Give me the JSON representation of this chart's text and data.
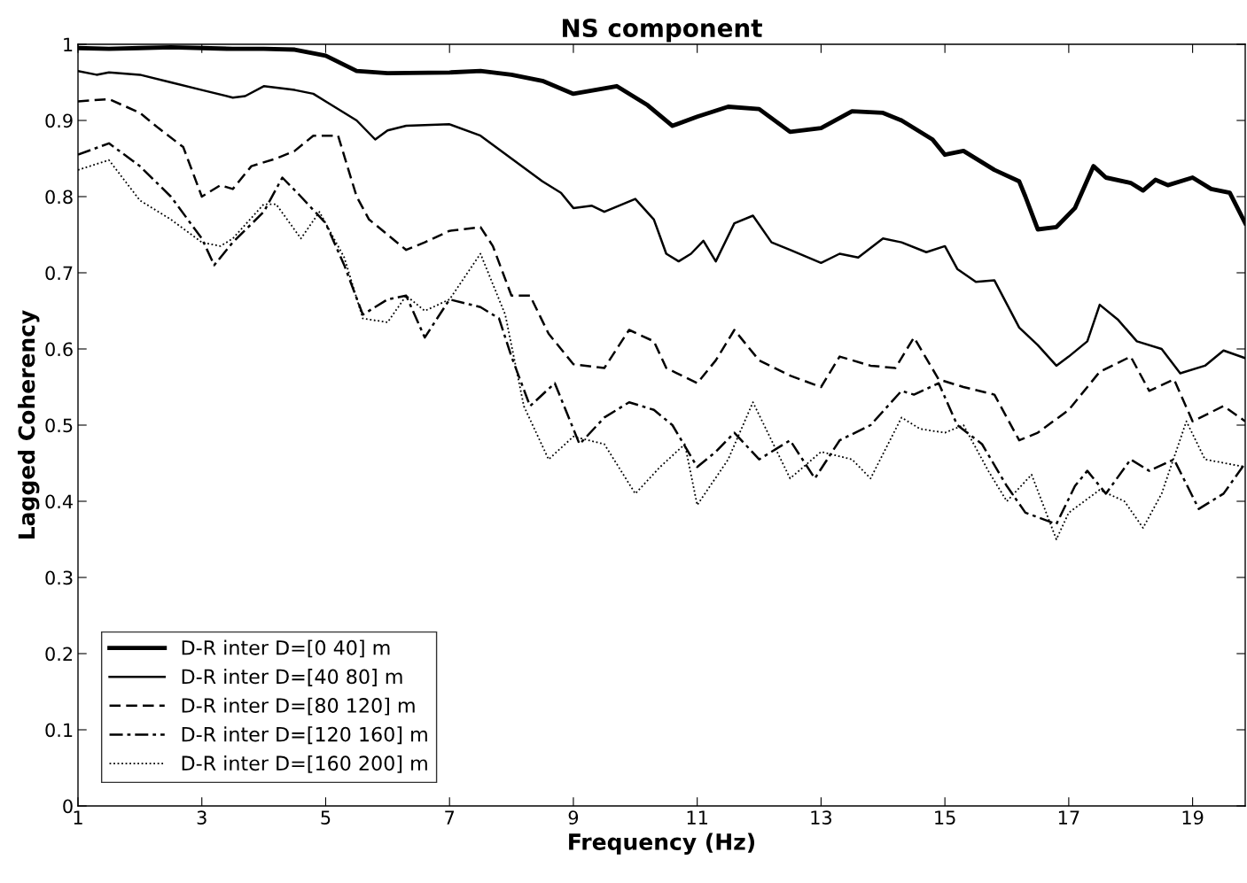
{
  "chart_data": {
    "type": "line",
    "title": "NS component",
    "xlabel": "Frequency (Hz)",
    "ylabel": "Lagged Coherency",
    "xlim": [
      1,
      19.85
    ],
    "xticks": [
      1,
      3,
      5,
      7,
      9,
      11,
      13,
      15,
      17,
      19
    ],
    "ylim": [
      0,
      1
    ],
    "yticks": [
      0,
      0.1,
      0.2,
      0.3,
      0.4,
      0.5,
      0.6,
      0.7,
      0.8,
      0.9,
      1
    ],
    "grid": false,
    "legend": "bottom left",
    "marker": "none",
    "series": [
      {
        "name": "D-R inter D=[0 40] m",
        "color": "#000000",
        "line_style": "solid",
        "x": [
          1,
          1.5,
          2,
          2.5,
          3,
          3.5,
          4,
          4.5,
          5,
          5.5,
          6,
          7,
          7.5,
          8,
          8.5,
          9,
          9.7,
          10.2,
          10.6,
          11,
          11.5,
          12,
          12.5,
          13,
          13.5,
          14,
          14.3,
          14.8,
          15,
          15.3,
          15.8,
          16.2,
          16.3,
          16.5,
          16.8,
          17.1,
          17.4,
          17.6,
          18,
          18.2,
          18.4,
          18.6,
          19,
          19.3,
          19.6,
          19.85
        ],
        "values": [
          0.995,
          0.994,
          0.995,
          0.996,
          0.995,
          0.994,
          0.994,
          0.993,
          0.985,
          0.965,
          0.962,
          0.963,
          0.965,
          0.96,
          0.952,
          0.935,
          0.945,
          0.92,
          0.893,
          0.905,
          0.918,
          0.915,
          0.885,
          0.89,
          0.912,
          0.91,
          0.9,
          0.875,
          0.855,
          0.86,
          0.835,
          0.82,
          0.8,
          0.757,
          0.76,
          0.785,
          0.84,
          0.825,
          0.818,
          0.808,
          0.822,
          0.815,
          0.825,
          0.81,
          0.805,
          0.765
        ]
      },
      {
        "name": "D-R inter D=[40 80] m",
        "color": "#000000",
        "line_style": "solid",
        "x": [
          1,
          1.3,
          1.5,
          2,
          2.5,
          3,
          3.5,
          3.7,
          4,
          4.5,
          4.8,
          5,
          5.5,
          5.8,
          6,
          6.3,
          7,
          7.5,
          8,
          8.5,
          8.8,
          9,
          9.3,
          9.5,
          10,
          10.3,
          10.5,
          10.7,
          10.9,
          11.1,
          11.3,
          11.6,
          11.9,
          12.2,
          12.5,
          13,
          13.3,
          13.6,
          14,
          14.3,
          14.7,
          15,
          15.2,
          15.5,
          15.8,
          16.2,
          16.5,
          16.8,
          17,
          17.3,
          17.5,
          17.8,
          18.1,
          18.5,
          18.8,
          19.2,
          19.5,
          19.85
        ],
        "values": [
          0.965,
          0.96,
          0.963,
          0.96,
          0.95,
          0.94,
          0.93,
          0.932,
          0.945,
          0.94,
          0.935,
          0.925,
          0.9,
          0.875,
          0.887,
          0.893,
          0.895,
          0.88,
          0.85,
          0.82,
          0.805,
          0.785,
          0.788,
          0.78,
          0.797,
          0.77,
          0.725,
          0.715,
          0.725,
          0.742,
          0.715,
          0.765,
          0.775,
          0.74,
          0.73,
          0.713,
          0.725,
          0.72,
          0.745,
          0.74,
          0.727,
          0.735,
          0.705,
          0.688,
          0.69,
          0.628,
          0.605,
          0.578,
          0.59,
          0.61,
          0.658,
          0.638,
          0.61,
          0.6,
          0.568,
          0.578,
          0.598,
          0.588
        ]
      },
      {
        "name": "D-R inter D=[80 120] m",
        "color": "#000000",
        "line_style": "dashed",
        "x": [
          1,
          1.5,
          2,
          2.3,
          2.7,
          3,
          3.3,
          3.5,
          3.8,
          4.2,
          4.5,
          4.8,
          5.2,
          5.5,
          5.7,
          6,
          6.3,
          6.6,
          7,
          7.5,
          7.7,
          8,
          8.3,
          8.6,
          9,
          9.5,
          9.9,
          10.3,
          10.5,
          11,
          11.3,
          11.6,
          12,
          12.5,
          13,
          13.3,
          13.8,
          14.2,
          14.5,
          14.9,
          15.3,
          15.8,
          16.2,
          16.5,
          17,
          17.5,
          18,
          18.3,
          18.7,
          19,
          19.5,
          19.85
        ],
        "values": [
          0.925,
          0.928,
          0.91,
          0.89,
          0.865,
          0.8,
          0.815,
          0.81,
          0.84,
          0.85,
          0.86,
          0.88,
          0.88,
          0.8,
          0.77,
          0.75,
          0.73,
          0.74,
          0.755,
          0.76,
          0.735,
          0.67,
          0.67,
          0.62,
          0.58,
          0.575,
          0.625,
          0.61,
          0.575,
          0.555,
          0.585,
          0.625,
          0.585,
          0.565,
          0.55,
          0.59,
          0.578,
          0.575,
          0.615,
          0.56,
          0.55,
          0.54,
          0.48,
          0.49,
          0.52,
          0.57,
          0.59,
          0.545,
          0.56,
          0.505,
          0.525,
          0.505
        ]
      },
      {
        "name": "D-R inter D=[120 160] m",
        "color": "#000000",
        "line_style": "dashdot",
        "x": [
          1,
          1.5,
          2,
          2.5,
          3,
          3.2,
          3.5,
          4,
          4.3,
          4.6,
          5,
          5.3,
          5.6,
          6,
          6.3,
          6.6,
          7,
          7.5,
          7.8,
          8,
          8.3,
          8.7,
          9.1,
          9.5,
          9.9,
          10.3,
          10.6,
          11,
          11.3,
          11.6,
          12,
          12.5,
          12.9,
          13.3,
          13.8,
          14.3,
          14.5,
          14.9,
          15.2,
          15.6,
          16,
          16.3,
          16.8,
          17.1,
          17.3,
          17.6,
          18,
          18.3,
          18.7,
          19.1,
          19.5,
          19.85
        ],
        "values": [
          0.855,
          0.87,
          0.84,
          0.8,
          0.745,
          0.71,
          0.74,
          0.78,
          0.825,
          0.8,
          0.765,
          0.71,
          0.645,
          0.665,
          0.67,
          0.615,
          0.665,
          0.655,
          0.64,
          0.59,
          0.525,
          0.555,
          0.475,
          0.51,
          0.53,
          0.52,
          0.5,
          0.445,
          0.465,
          0.49,
          0.455,
          0.48,
          0.43,
          0.48,
          0.5,
          0.545,
          0.54,
          0.555,
          0.5,
          0.475,
          0.42,
          0.385,
          0.37,
          0.42,
          0.44,
          0.41,
          0.455,
          0.44,
          0.455,
          0.39,
          0.41,
          0.45
        ]
      },
      {
        "name": "D-R inter D=[160 200] m",
        "color": "#000000",
        "line_style": "dotted",
        "x": [
          1,
          1.5,
          2,
          2.5,
          3,
          3.3,
          3.5,
          4,
          4.2,
          4.6,
          4.9,
          5.3,
          5.6,
          6,
          6.3,
          6.6,
          7,
          7.5,
          7.9,
          8.2,
          8.6,
          9,
          9.5,
          10,
          10.4,
          10.8,
          11,
          11.5,
          11.9,
          12.5,
          13,
          13.5,
          13.8,
          14.3,
          14.6,
          15,
          15.3,
          15.7,
          16,
          16.4,
          16.8,
          17,
          17.5,
          17.9,
          18.2,
          18.5,
          18.9,
          19.2,
          19.85
        ],
        "values": [
          0.835,
          0.848,
          0.795,
          0.77,
          0.74,
          0.735,
          0.745,
          0.79,
          0.79,
          0.745,
          0.78,
          0.72,
          0.64,
          0.635,
          0.67,
          0.65,
          0.665,
          0.725,
          0.645,
          0.525,
          0.455,
          0.485,
          0.475,
          0.41,
          0.445,
          0.475,
          0.395,
          0.455,
          0.53,
          0.43,
          0.465,
          0.455,
          0.43,
          0.51,
          0.495,
          0.49,
          0.5,
          0.44,
          0.4,
          0.435,
          0.35,
          0.385,
          0.415,
          0.4,
          0.365,
          0.41,
          0.505,
          0.455,
          0.445
        ]
      }
    ]
  }
}
